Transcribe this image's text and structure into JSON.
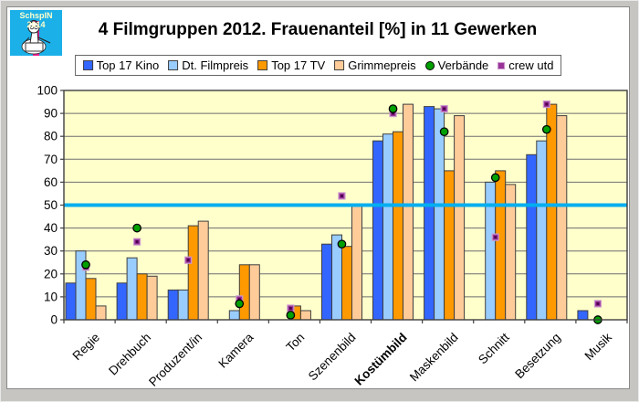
{
  "frame": {
    "color": "#c6c5c1"
  },
  "logo": {
    "text": "SchspIN 2014",
    "bg": "#1cb0e8",
    "stripe": "#ec1e8c"
  },
  "title": "4 Filmgruppen 2012. Frauenanteil [%] in 11 Gewerken",
  "chart_data": {
    "type": "bar",
    "title": "4 Filmgruppen 2012. Frauenanteil [%] in 11 Gewerken",
    "categories": [
      "Regie",
      "Drehbuch",
      "Produzent/in",
      "Kamera",
      "Ton",
      "Szenenbild",
      "Kostümbild",
      "Maskenbild",
      "Schnitt",
      "Besetzung",
      "Musik"
    ],
    "bold_categories": [
      "Kostümbild"
    ],
    "series": [
      {
        "name": "Top 17 Kino",
        "kind": "bar",
        "color": "#3366ff",
        "values": [
          16,
          16,
          13,
          0,
          0,
          33,
          78,
          93,
          0,
          72,
          4
        ]
      },
      {
        "name": "Dt. Filmpreis",
        "kind": "bar",
        "color": "#99ccff",
        "values": [
          30,
          27,
          13,
          4,
          0,
          37,
          81,
          92,
          60,
          78,
          0
        ]
      },
      {
        "name": "Top 17 TV",
        "kind": "bar",
        "color": "#ff9900",
        "values": [
          18,
          20,
          41,
          24,
          6,
          32,
          82,
          65,
          65,
          94,
          0
        ]
      },
      {
        "name": "Grimmepreis",
        "kind": "bar",
        "color": "#ffcc99",
        "values": [
          6,
          19,
          43,
          24,
          4,
          50,
          94,
          89,
          59,
          89,
          0
        ]
      },
      {
        "name": "Verbände",
        "kind": "marker-circle",
        "color": "#00a000",
        "values": [
          24,
          40,
          null,
          7,
          2,
          33,
          92,
          82,
          62,
          83,
          0
        ]
      },
      {
        "name": "crew utd",
        "kind": "marker-square",
        "color": "#993399",
        "border": "#cc99cc",
        "values": [
          23,
          34,
          26,
          9,
          5,
          54,
          90,
          92,
          36,
          94,
          7
        ]
      }
    ],
    "xlabel": "",
    "ylabel": "",
    "ylim": [
      0,
      100
    ],
    "yticks": [
      0,
      10,
      20,
      30,
      40,
      50,
      60,
      70,
      80,
      90,
      100
    ],
    "refline": {
      "value": 50,
      "color": "#00aeef"
    },
    "plot_bg": "#ffffcc",
    "grid": true,
    "legend_position": "top"
  }
}
